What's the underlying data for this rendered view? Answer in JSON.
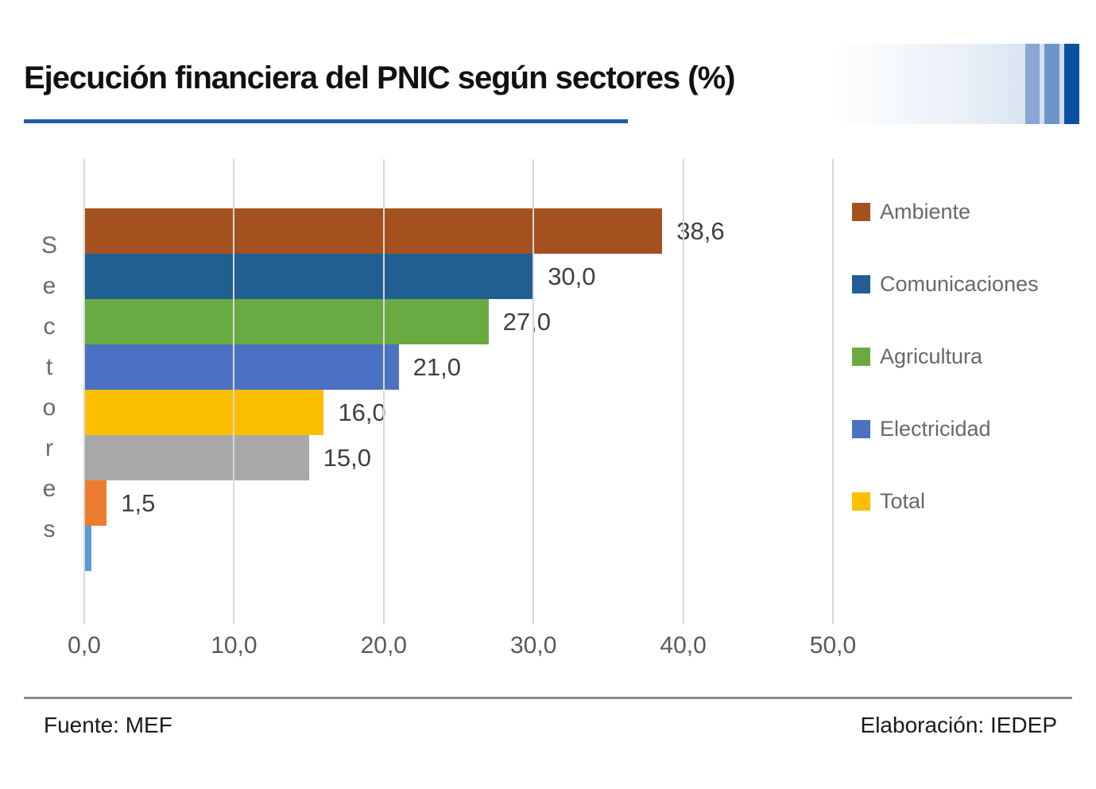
{
  "page": {
    "background": "#FFFFFF"
  },
  "header": {
    "title": "Ejecución financiera del PNIC según sectores (%)",
    "underline_color": "#1E5CA6",
    "decoration": {
      "gradient_start": "#FFFFFF",
      "gradient_end": "#CBD9EC",
      "stripes": [
        "#86A8D2",
        "#6C96C8",
        "#0A51A2"
      ]
    }
  },
  "chart": {
    "y_axis_label": "Sectores",
    "axis_max": 50,
    "gridline_color": "#D9D9D9",
    "x_ticks": [
      "0,0",
      "10,0",
      "20,0",
      "30,0",
      "40,0",
      "50,0"
    ],
    "bars": [
      {
        "category": "Ambiente",
        "value": 38.6,
        "label": "38,6",
        "color": "#A5511F"
      },
      {
        "category": "Comunicaciones",
        "value": 30.0,
        "label": "30,0",
        "color": "#215E91"
      },
      {
        "category": "Agricultura",
        "value": 27.0,
        "label": "27,0",
        "color": "#6AAA43"
      },
      {
        "category": "Electricidad",
        "value": 21.0,
        "label": "21,0",
        "color": "#4B72C2"
      },
      {
        "category": "Total",
        "value": 16.0,
        "label": "16,0",
        "color": "#FBBE00"
      },
      {
        "category": "",
        "value": 15.0,
        "label": "15,0",
        "color": "#A8A8A8"
      },
      {
        "category": "",
        "value": 1.5,
        "label": "1,5",
        "color": "#EC7D2F"
      },
      {
        "category": "",
        "value": 0.5,
        "label": "",
        "color": "#5B9BD5"
      }
    ],
    "legend": [
      {
        "label": "Ambiente",
        "color": "#A5511F"
      },
      {
        "label": "Comunicaciones",
        "color": "#215E91"
      },
      {
        "label": "Agricultura",
        "color": "#6AAA43"
      },
      {
        "label": "Electricidad",
        "color": "#4B72C2"
      },
      {
        "label": "Total",
        "color": "#FBBE00"
      }
    ]
  },
  "footer": {
    "source": "Fuente: MEF",
    "elaboration": "Elaboración: IEDEP"
  },
  "chart_data": {
    "type": "bar",
    "orientation": "horizontal",
    "title": "Ejecución financiera del PNIC según sectores (%)",
    "xlabel": "",
    "ylabel": "Sectores",
    "xlim": [
      0,
      50
    ],
    "x_tick_labels": [
      "0,0",
      "10,0",
      "20,0",
      "30,0",
      "40,0",
      "50,0"
    ],
    "grid": true,
    "legend_position": "right",
    "legend_entries": [
      "Ambiente",
      "Comunicaciones",
      "Agricultura",
      "Electricidad",
      "Total"
    ],
    "series": [
      {
        "name": "Ambiente",
        "value": 38.6,
        "data_label": "38,6",
        "color": "#A5511F"
      },
      {
        "name": "Comunicaciones",
        "value": 30.0,
        "data_label": "30,0",
        "color": "#215E91"
      },
      {
        "name": "Agricultura",
        "value": 27.0,
        "data_label": "27,0",
        "color": "#6AAA43"
      },
      {
        "name": "Electricidad",
        "value": 21.0,
        "data_label": "21,0",
        "color": "#4B72C2"
      },
      {
        "name": "Total",
        "value": 16.0,
        "data_label": "16,0",
        "color": "#FBBE00"
      },
      {
        "name": "",
        "value": 15.0,
        "data_label": "15,0",
        "color": "#A8A8A8"
      },
      {
        "name": "",
        "value": 1.5,
        "data_label": "1,5",
        "color": "#EC7D2F"
      },
      {
        "name": "",
        "value": 0.5,
        "data_label": "",
        "color": "#5B9BD5"
      }
    ],
    "source_note": "Fuente: MEF",
    "elaboration_note": "Elaboración: IEDEP"
  }
}
